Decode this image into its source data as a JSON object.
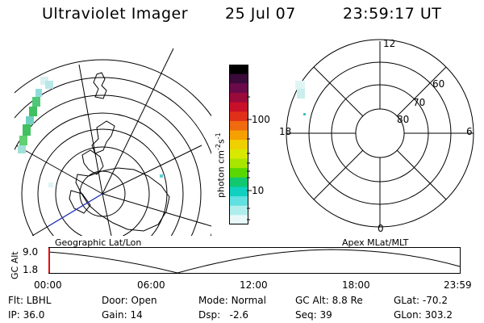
{
  "header": {
    "instrument": "Ultraviolet Imager",
    "date": "25 Jul 07",
    "time": "23:59:17 UT"
  },
  "colorbar": {
    "unit_main": "photon cm",
    "unit_exp1": "-2",
    "unit_mid": "s",
    "unit_exp2": "-1",
    "ticks": [
      "100",
      "10"
    ],
    "colors_top_to_bottom": [
      "#000000",
      "#3a0a3a",
      "#6a0a4a",
      "#9a0a3a",
      "#c8102a",
      "#e0301a",
      "#f06a10",
      "#f5a000",
      "#f0d000",
      "#d8e800",
      "#a8e600",
      "#58d800",
      "#10c870",
      "#10d0c0",
      "#60e0e0",
      "#b0eeee",
      "#e8f8f8"
    ]
  },
  "left_map": {
    "label": "Geographic Lat/Lon"
  },
  "right_map": {
    "label": "Apex MLat/MLT",
    "lat_labels": [
      "60",
      "70",
      "80"
    ],
    "mlt_labels": [
      "12",
      "18",
      "6",
      "0"
    ]
  },
  "altitude_plot": {
    "ylabel": "GC Alt",
    "yticks": [
      "9.0",
      "1.8"
    ],
    "xticks": [
      "00:00",
      "06:00",
      "12:00",
      "18:00",
      "23:59"
    ]
  },
  "status": {
    "flt_label": "Flt:",
    "flt_value": "LBHL",
    "ip_label": "IP:",
    "ip_value": "36.0",
    "door_label": "Door:",
    "door_value": "Open",
    "gain_label": "Gain:",
    "gain_value": "14",
    "mode_label": "Mode:",
    "mode_value": "Normal",
    "dsp_label": "Dsp:",
    "dsp_value": "-2.6",
    "gcalt_label": "GC Alt:",
    "gcalt_value": "8.8 Re",
    "seq_label": "Seq:",
    "seq_value": "39",
    "glat_label": "GLat:",
    "glat_value": "-70.2",
    "glon_label": "GLon:",
    "glon_value": "303.2"
  }
}
